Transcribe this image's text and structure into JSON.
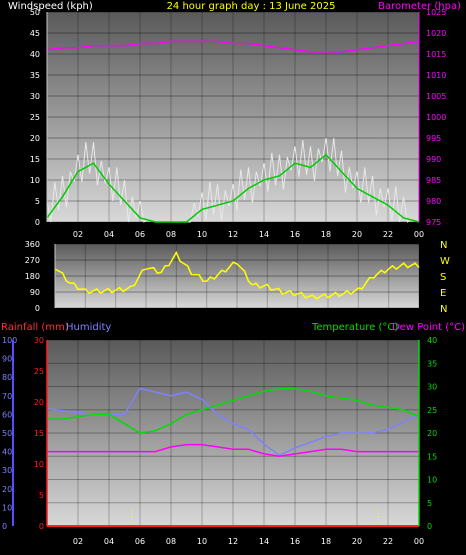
{
  "header": {
    "windspeed_label": "Windspeed (kph)",
    "title": "24 hour graph day : 13 June 2025",
    "barometer_label": "Barometer (hpa)"
  },
  "bottom_header": {
    "rainfall_label": "Rainfall (mm)",
    "humidity_label": "Humidity",
    "temperature_label": "Temperature (°C)",
    "dewpoint_label": "Dew Point (°C)"
  },
  "compass": [
    "N",
    "W",
    "S",
    "E",
    "N"
  ],
  "colors": {
    "wind_gust": "#e8e8e8",
    "wind_avg": "#00cc00",
    "barometer": "#ff00ff",
    "direction": "#ffff00",
    "rain": "#ff2020",
    "humidity": "#8080ff",
    "temperature": "#00dd00",
    "dewpoint": "#ff00ff"
  },
  "chart_data": [
    {
      "type": "line",
      "x_ticks": [
        "02",
        "04",
        "06",
        "08",
        "10",
        "12",
        "14",
        "16",
        "18",
        "20",
        "22",
        "00"
      ],
      "y_left": {
        "label": "Windspeed (kph)",
        "ylim": [
          0,
          50
        ],
        "ticks": [
          0,
          5,
          10,
          15,
          20,
          25,
          30,
          35,
          40,
          45,
          50
        ]
      },
      "y_right": {
        "label": "Barometer (hpa)",
        "ylim": [
          975,
          1025
        ],
        "ticks": [
          975,
          980,
          985,
          990,
          995,
          1000,
          1005,
          1010,
          1015,
          1020,
          1025
        ]
      },
      "x": [
        0,
        1,
        2,
        3,
        4,
        5,
        6,
        7,
        8,
        9,
        10,
        11,
        12,
        13,
        14,
        15,
        16,
        17,
        18,
        19,
        20,
        21,
        22,
        23,
        24
      ],
      "series": [
        {
          "name": "Windspeed (kph)",
          "values": [
            1,
            6,
            12,
            14,
            9,
            5,
            1,
            0,
            0,
            0,
            3,
            4,
            5,
            8,
            10,
            11,
            14,
            13,
            16,
            12,
            8,
            6,
            4,
            1,
            0
          ]
        },
        {
          "name": "Barometer (hpa)",
          "values": [
            1016,
            1016.5,
            1016.5,
            1017,
            1017,
            1017,
            1017.5,
            1017.5,
            1018,
            1018,
            1018,
            1018,
            1017.5,
            1017.5,
            1017,
            1016.5,
            1016,
            1015.5,
            1015.5,
            1015.5,
            1016,
            1016.5,
            1017,
            1017.5,
            1018
          ]
        }
      ]
    },
    {
      "type": "line",
      "y_left": {
        "ylim": [
          0,
          360
        ],
        "ticks": [
          0,
          90,
          180,
          270,
          360
        ]
      },
      "x": [
        0,
        1,
        2,
        3,
        4,
        5,
        6,
        7,
        8,
        9,
        10,
        11,
        12,
        13,
        14,
        15,
        16,
        17,
        18,
        19,
        20,
        21,
        22,
        23,
        24
      ],
      "series": [
        {
          "name": "Wind direction",
          "values": [
            230,
            140,
            95,
            95,
            100,
            110,
            230,
            200,
            300,
            200,
            150,
            200,
            260,
            130,
            120,
            90,
            80,
            60,
            70,
            80,
            100,
            180,
            220,
            240,
            240
          ]
        }
      ]
    },
    {
      "type": "line",
      "x_ticks": [
        "02",
        "04",
        "06",
        "08",
        "10",
        "12",
        "14",
        "16",
        "18",
        "20",
        "22",
        "00"
      ],
      "y_left": {
        "label": "Rainfall (mm)",
        "ylim": [
          0,
          30
        ],
        "ticks": [
          0,
          5,
          10,
          15,
          20,
          25,
          30
        ]
      },
      "y_humidity": {
        "label": "Humidity",
        "ylim": [
          0,
          100
        ],
        "ticks": [
          0,
          10,
          20,
          30,
          40,
          50,
          60,
          70,
          80,
          90,
          100
        ]
      },
      "y_right": {
        "label": "Temperature (°C)",
        "ylim": [
          0,
          40
        ],
        "ticks": [
          0,
          5,
          10,
          15,
          20,
          25,
          30,
          35,
          40
        ]
      },
      "x": [
        0,
        1,
        2,
        3,
        4,
        5,
        6,
        7,
        8,
        9,
        10,
        11,
        12,
        13,
        14,
        15,
        16,
        17,
        18,
        19,
        20,
        21,
        22,
        23,
        24
      ],
      "series": [
        {
          "name": "Rainfall (mm)",
          "values": [
            0,
            0,
            0,
            0,
            0,
            0,
            0,
            0,
            0,
            0,
            0,
            0,
            0,
            0,
            0,
            0,
            0,
            0,
            0,
            0,
            0,
            0,
            0,
            0,
            0
          ]
        },
        {
          "name": "Humidity",
          "values": [
            63,
            62,
            61,
            60,
            60,
            60,
            74,
            72,
            70,
            72,
            68,
            60,
            55,
            52,
            44,
            38,
            42,
            45,
            48,
            50,
            50,
            50,
            52,
            56,
            60
          ]
        },
        {
          "name": "Temperature (°C)",
          "values": [
            23,
            23,
            23.5,
            24,
            24,
            22,
            20,
            20.5,
            22,
            24,
            25,
            26,
            27,
            28,
            29,
            29.5,
            29.5,
            29,
            28,
            27.5,
            27,
            26,
            25.5,
            25,
            23.5
          ]
        },
        {
          "name": "Dew Point (°C)",
          "values": [
            16,
            16,
            16,
            16,
            16,
            16,
            16,
            16,
            17,
            17.5,
            17.5,
            17,
            16.5,
            16.5,
            15.5,
            15,
            15.5,
            16,
            16.5,
            16.5,
            16,
            16,
            16,
            16,
            16
          ]
        }
      ]
    }
  ]
}
